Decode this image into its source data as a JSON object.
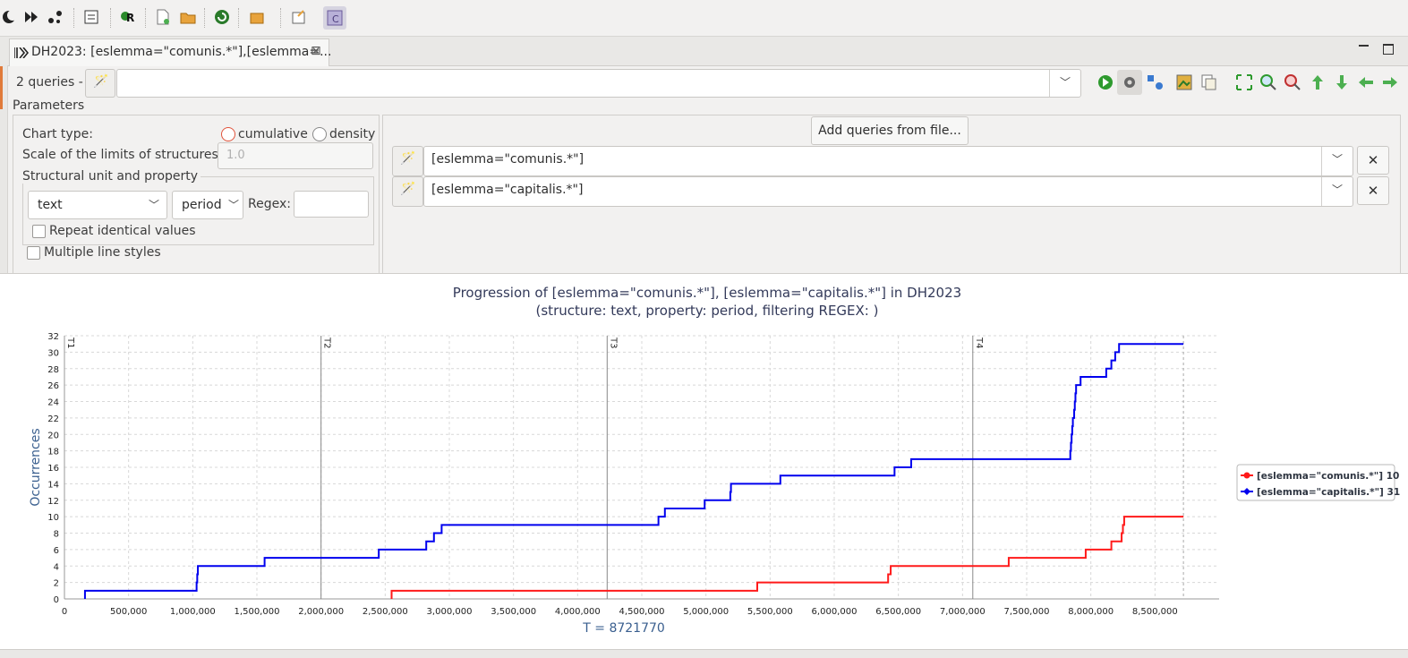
{
  "tab": {
    "title": "DH2023: [eslemma=\"comunis.*\"],[eslemma=...",
    "close_icon": "close-icon"
  },
  "query_bar": {
    "count_label": "2 queries -",
    "input_value": ""
  },
  "parameters": {
    "label": "Parameters",
    "chart_type_label": "Chart type:",
    "chart_type_options": [
      "cumulative",
      "density"
    ],
    "chart_type_selected": "cumulative",
    "scale_label": "Scale of the limits of structures:",
    "scale_value": "1.0",
    "structural_label": "Structural unit and property",
    "unit_value": "text",
    "property_value": "period",
    "regex_label": "Regex:",
    "regex_value": "",
    "repeat_label": "Repeat identical values",
    "multiple_label": "Multiple line styles"
  },
  "queries": {
    "add_button": "Add queries from file...",
    "items": [
      "[eslemma=\"comunis.*\"]",
      "[eslemma=\"capitalis.*\"]"
    ]
  },
  "colors": {
    "series1": "#ff1a1a",
    "series2": "#0000ee",
    "accent_radio": "#e0533b"
  },
  "chart_data": {
    "type": "line",
    "title": "Progression of [eslemma=\"comunis.*\"], [eslemma=\"capitalis.*\"] in DH2023",
    "subtitle": "(structure: text, property: period, filtering REGEX: )",
    "xlabel": "T = 8721770",
    "ylabel": "Occurrences",
    "xlim": [
      0,
      9000000
    ],
    "ylim": [
      0,
      32
    ],
    "x_ticks": [
      0,
      500000,
      1000000,
      1500000,
      2000000,
      2500000,
      3000000,
      3500000,
      4000000,
      4500000,
      5000000,
      5500000,
      6000000,
      6500000,
      7000000,
      7500000,
      8000000,
      8500000
    ],
    "x_tick_labels": [
      "0",
      "500,000",
      "1,000,000",
      "1,500,000",
      "2,000,000",
      "2,500,000",
      "3,000,000",
      "3,500,000",
      "4,000,000",
      "4,500,000",
      "5,000,000",
      "5,500,000",
      "6,000,000",
      "6,500,000",
      "7,000,000",
      "7,500,000",
      "8,000,000",
      "8,500,000"
    ],
    "y_ticks": [
      0,
      2,
      4,
      6,
      8,
      10,
      12,
      14,
      16,
      18,
      20,
      22,
      24,
      26,
      28,
      30,
      32
    ],
    "grid": true,
    "structure_markers": [
      {
        "label": "T1",
        "x": 0
      },
      {
        "label": "T2",
        "x": 2000000
      },
      {
        "label": "T3",
        "x": 4230000
      },
      {
        "label": "T4",
        "x": 7080000
      }
    ],
    "end_x": 8721770,
    "legend_position": "right",
    "legend": [
      "[eslemma=\"comunis.*\"] 10",
      "[eslemma=\"capitalis.*\"] 31"
    ],
    "series": [
      {
        "name": "[eslemma=\"comunis.*\"]",
        "color": "#ff1a1a",
        "final": 10,
        "steps": [
          2550000,
          5400000,
          6420000,
          6440000,
          7360000,
          7960000,
          8160000,
          8240000,
          8250000,
          8260000
        ]
      },
      {
        "name": "[eslemma=\"capitalis.*\"]",
        "color": "#0000ee",
        "final": 31,
        "steps": [
          160000,
          1030000,
          1035000,
          1040000,
          1560000,
          2450000,
          2820000,
          2880000,
          2940000,
          4630000,
          4680000,
          4990000,
          5190000,
          5195000,
          5580000,
          6470000,
          6600000,
          7840000,
          7845000,
          7850000,
          7855000,
          7860000,
          7870000,
          7875000,
          7880000,
          7885000,
          7920000,
          8120000,
          8160000,
          8190000,
          8220000
        ]
      }
    ]
  }
}
